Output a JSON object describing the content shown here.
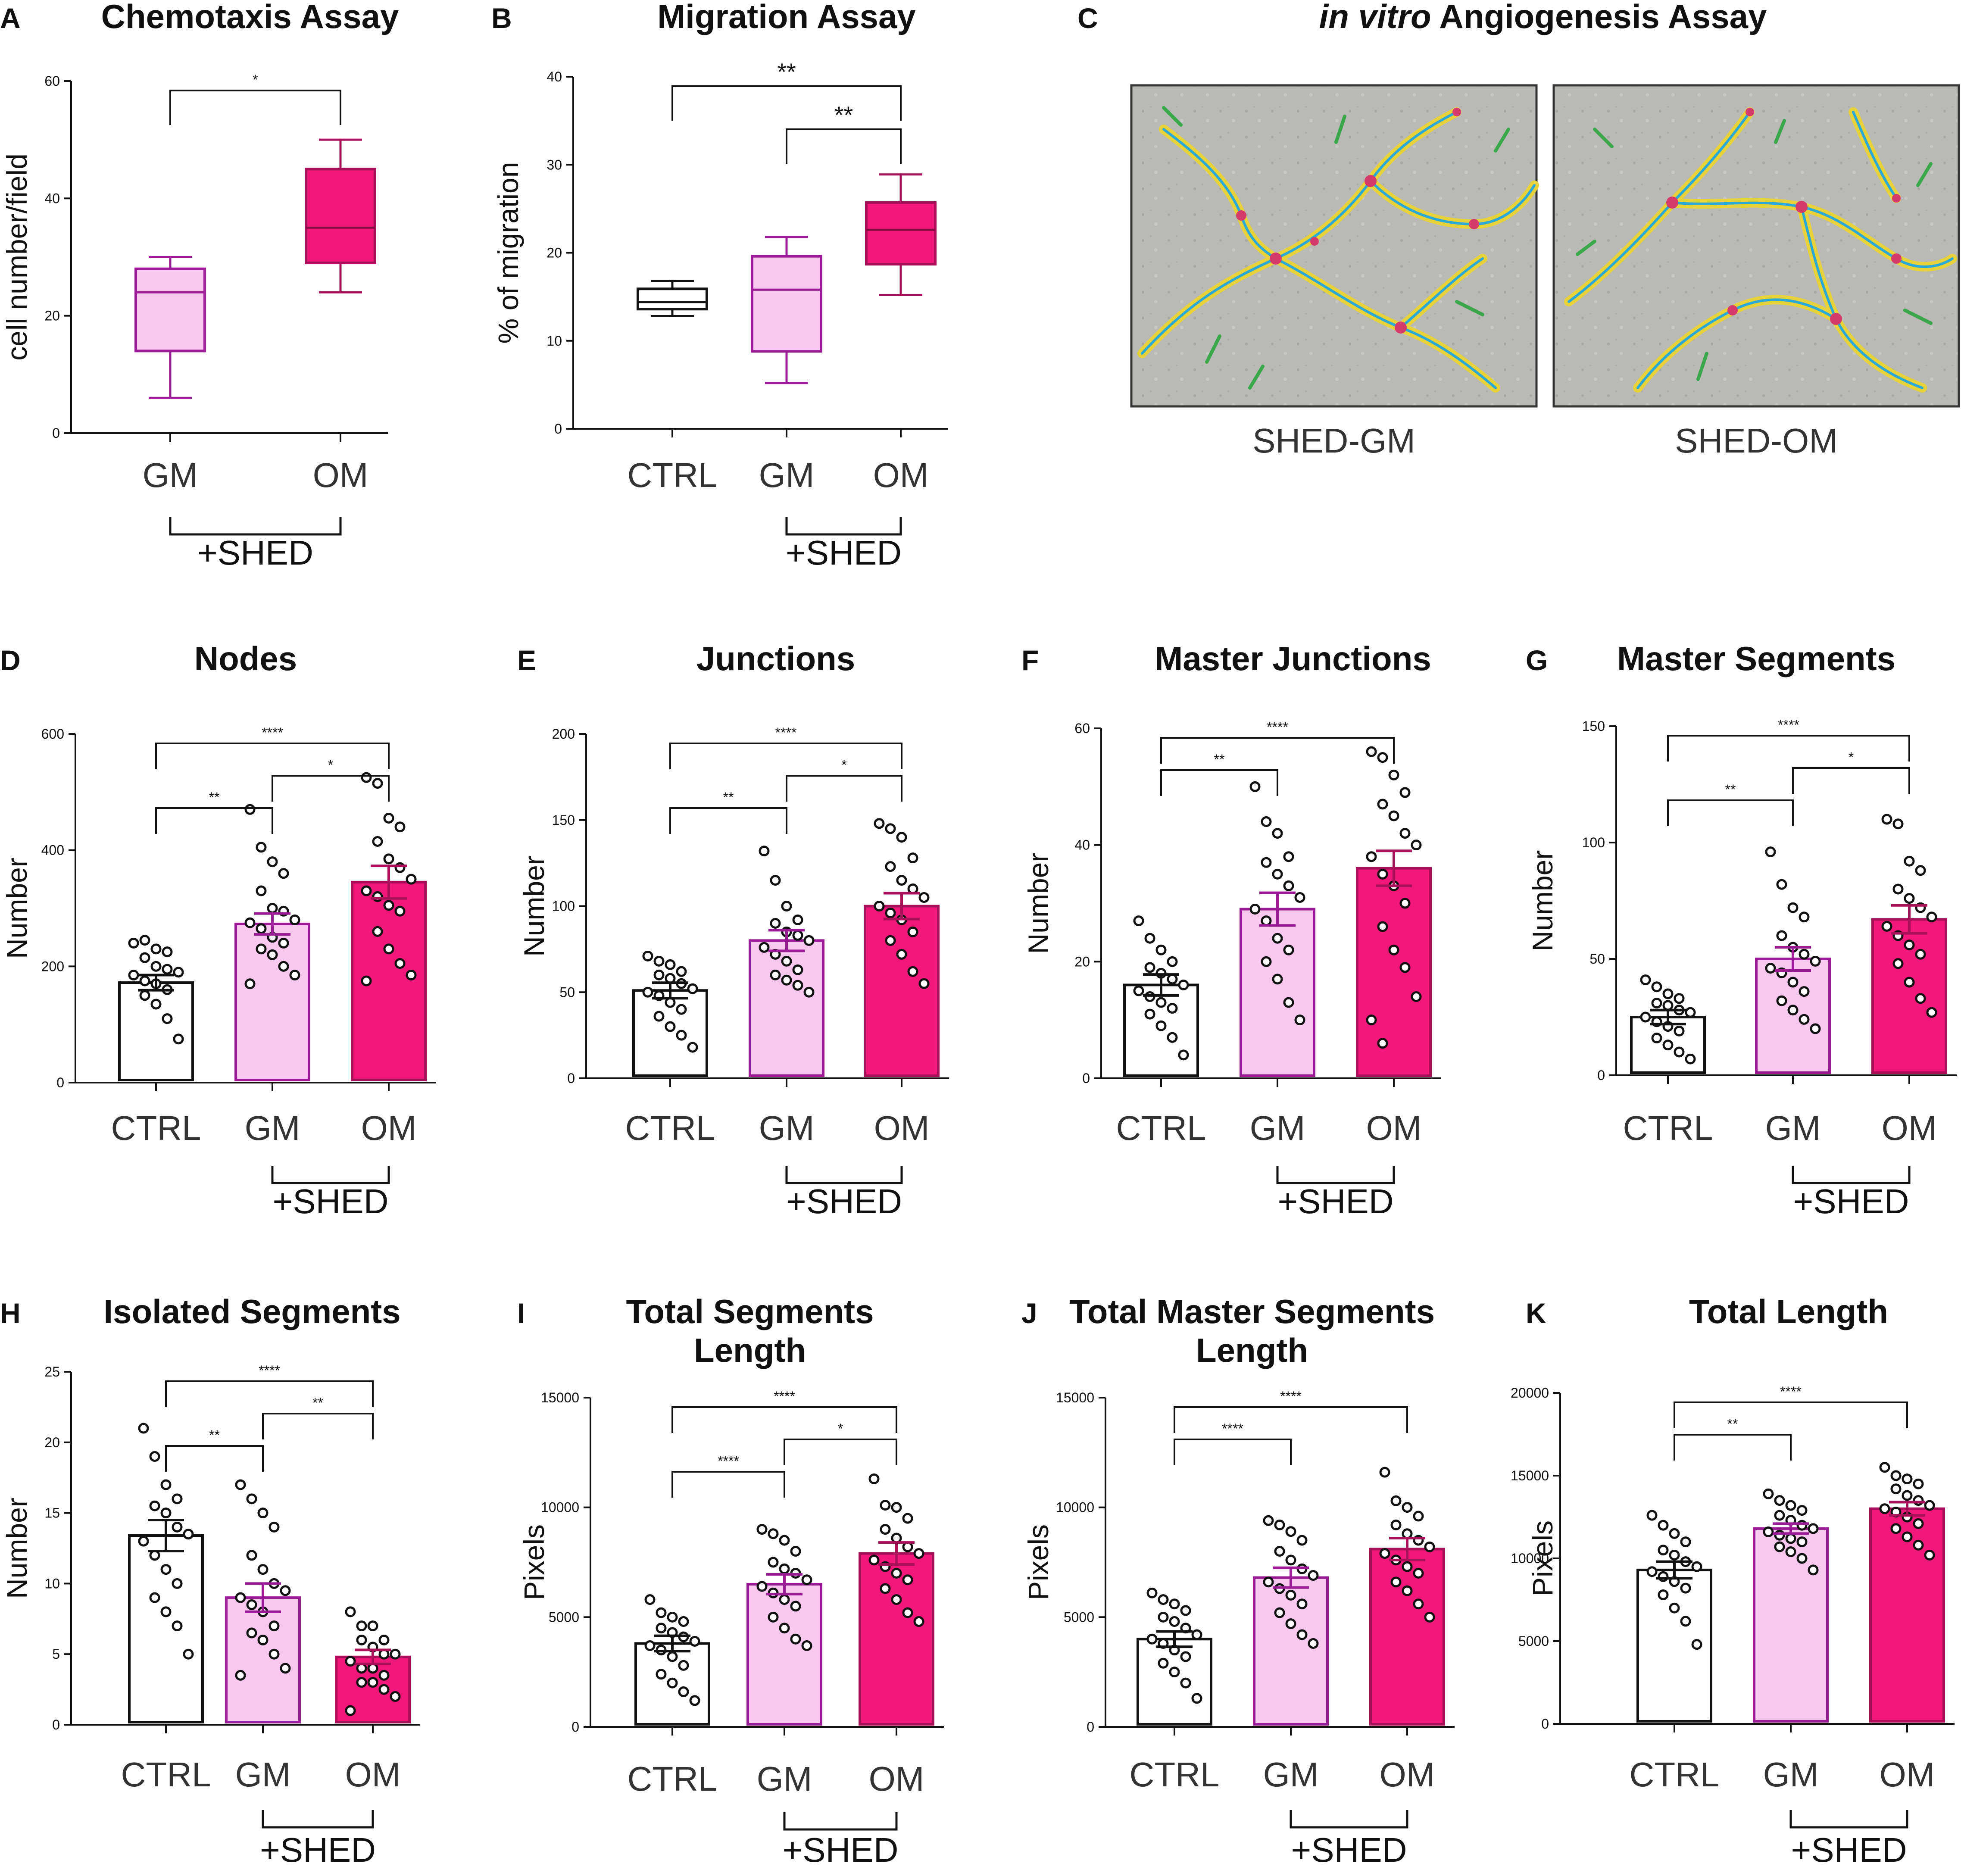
{
  "colors": {
    "ctrl_fill": "#ffffff",
    "ctrl_edge": "#111111",
    "gm_fill": "#f8c8ee",
    "gm_edge": "#9b1a96",
    "om_fill": "#f2177a",
    "om_edge": "#a8105a",
    "axis": "#111111"
  },
  "chart_data": [
    {
      "id": "A",
      "panel_label": "A",
      "type": "box",
      "title": "Chemotaxis Assay",
      "ylabel": "cell number/field",
      "ylim": [
        0,
        60
      ],
      "yticks": [
        0,
        20,
        40,
        60
      ],
      "categories": [
        "GM",
        "OM"
      ],
      "group_label": "+SHED",
      "group_members": [
        "GM",
        "OM"
      ],
      "series": [
        {
          "name": "GM",
          "style": "gm",
          "min": 6,
          "q1": 14,
          "median": 24,
          "q3": 28,
          "max": 30
        },
        {
          "name": "OM",
          "style": "om",
          "min": 24,
          "q1": 29,
          "median": 35,
          "q3": 45,
          "max": 50
        }
      ],
      "significance": [
        {
          "from": "GM",
          "to": "OM",
          "label": "*",
          "level": 0
        }
      ]
    },
    {
      "id": "B",
      "panel_label": "B",
      "type": "box",
      "title": "Migration Assay",
      "ylabel": "% of migration",
      "ylim": [
        0,
        40
      ],
      "yticks": [
        0,
        10,
        20,
        30,
        40
      ],
      "categories": [
        "CTRL",
        "GM",
        "OM"
      ],
      "group_label": "+SHED",
      "group_members": [
        "GM",
        "OM"
      ],
      "series": [
        {
          "name": "CTRL",
          "style": "ctrl",
          "min": 12.8,
          "q1": 13.6,
          "median": 14.4,
          "q3": 15.9,
          "max": 16.8
        },
        {
          "name": "GM",
          "style": "gm",
          "min": 5.2,
          "q1": 8.8,
          "median": 15.8,
          "q3": 19.6,
          "max": 21.8
        },
        {
          "name": "OM",
          "style": "om",
          "min": 15.2,
          "q1": 18.7,
          "median": 22.6,
          "q3": 25.7,
          "max": 28.9
        }
      ],
      "significance": [
        {
          "from": "CTRL",
          "to": "OM",
          "label": "**",
          "level": 1,
          "big": true
        },
        {
          "from": "GM",
          "to": "OM",
          "label": "**",
          "level": 0,
          "big": true
        }
      ]
    },
    {
      "id": "D",
      "panel_label": "D",
      "type": "bar",
      "title": "Nodes",
      "ylabel": "Number",
      "ylim": [
        0,
        600
      ],
      "yticks": [
        0,
        200,
        400,
        600
      ],
      "categories": [
        "CTRL",
        "GM",
        "OM"
      ],
      "group_label": "+SHED",
      "group_members": [
        "GM",
        "OM"
      ],
      "series": [
        {
          "name": "CTRL",
          "style": "ctrl",
          "mean": 172,
          "sem": 13,
          "points": [
            240,
            245,
            230,
            225,
            215,
            200,
            195,
            190,
            185,
            175,
            170,
            160,
            150,
            135,
            110,
            75
          ]
        },
        {
          "name": "GM",
          "style": "gm",
          "mean": 273,
          "sem": 18,
          "points": [
            470,
            405,
            380,
            360,
            330,
            300,
            295,
            280,
            275,
            265,
            250,
            240,
            230,
            220,
            200,
            185,
            170
          ]
        },
        {
          "name": "OM",
          "style": "om",
          "mean": 345,
          "sem": 28,
          "points": [
            525,
            515,
            455,
            440,
            415,
            385,
            370,
            350,
            330,
            320,
            305,
            295,
            260,
            230,
            205,
            185,
            175
          ]
        }
      ],
      "significance": [
        {
          "from": "CTRL",
          "to": "GM",
          "label": "**",
          "level": 0
        },
        {
          "from": "GM",
          "to": "OM",
          "label": "*",
          "level": 1
        },
        {
          "from": "CTRL",
          "to": "OM",
          "label": "****",
          "level": 2
        }
      ]
    },
    {
      "id": "E",
      "panel_label": "E",
      "type": "bar",
      "title": "Junctions",
      "ylabel": "Number",
      "ylim": [
        0,
        200
      ],
      "yticks": [
        0,
        50,
        100,
        150,
        200
      ],
      "categories": [
        "CTRL",
        "GM",
        "OM"
      ],
      "group_label": "+SHED",
      "group_members": [
        "GM",
        "OM"
      ],
      "series": [
        {
          "name": "CTRL",
          "style": "ctrl",
          "mean": 51,
          "sem": 4.5,
          "points": [
            71,
            68,
            66,
            62,
            60,
            58,
            55,
            52,
            50,
            48,
            44,
            40,
            36,
            30,
            25,
            18
          ]
        },
        {
          "name": "GM",
          "style": "gm",
          "mean": 80,
          "sem": 6,
          "points": [
            132,
            115,
            100,
            92,
            90,
            85,
            83,
            80,
            76,
            72,
            68,
            63,
            60,
            57,
            54,
            50
          ]
        },
        {
          "name": "OM",
          "style": "om",
          "mean": 100,
          "sem": 7.5,
          "points": [
            148,
            145,
            140,
            128,
            123,
            115,
            110,
            105,
            100,
            96,
            92,
            85,
            80,
            72,
            62,
            55
          ]
        }
      ],
      "significance": [
        {
          "from": "CTRL",
          "to": "GM",
          "label": "**",
          "level": 0
        },
        {
          "from": "GM",
          "to": "OM",
          "label": "*",
          "level": 1
        },
        {
          "from": "CTRL",
          "to": "OM",
          "label": "****",
          "level": 2
        }
      ]
    },
    {
      "id": "F",
      "panel_label": "F",
      "type": "bar",
      "title": "Master Junctions",
      "ylabel": "Number",
      "ylim": [
        0,
        60
      ],
      "yticks": [
        0,
        20,
        40,
        60
      ],
      "categories": [
        "CTRL",
        "GM",
        "OM"
      ],
      "group_label": "+SHED",
      "group_members": [
        "GM",
        "OM"
      ],
      "series": [
        {
          "name": "CTRL",
          "style": "ctrl",
          "mean": 16,
          "sem": 1.8,
          "points": [
            27,
            24,
            22,
            20,
            19,
            18,
            17,
            16,
            15,
            14,
            13,
            12,
            11,
            9,
            7,
            4
          ]
        },
        {
          "name": "GM",
          "style": "gm",
          "mean": 29,
          "sem": 2.8,
          "points": [
            50,
            44,
            42,
            38,
            37,
            35,
            33,
            31,
            29,
            27,
            24,
            22,
            20,
            17,
            13,
            10
          ]
        },
        {
          "name": "OM",
          "style": "om",
          "mean": 36,
          "sem": 3,
          "points": [
            56,
            55,
            52,
            49,
            47,
            45,
            42,
            40,
            38,
            35,
            33,
            30,
            26,
            22,
            19,
            14,
            10,
            6
          ]
        }
      ],
      "significance": [
        {
          "from": "CTRL",
          "to": "GM",
          "label": "**",
          "level": 0
        },
        {
          "from": "CTRL",
          "to": "OM",
          "label": "****",
          "level": 1
        }
      ]
    },
    {
      "id": "G",
      "panel_label": "G",
      "type": "bar",
      "title": "Master Segments",
      "ylabel": "Number",
      "ylim": [
        0,
        150
      ],
      "yticks": [
        0,
        50,
        100,
        150
      ],
      "categories": [
        "CTRL",
        "GM",
        "OM"
      ],
      "group_label": "+SHED",
      "group_members": [
        "GM",
        "OM"
      ],
      "series": [
        {
          "name": "CTRL",
          "style": "ctrl",
          "mean": 25,
          "sem": 3,
          "points": [
            41,
            38,
            35,
            33,
            31,
            30,
            28,
            27,
            25,
            23,
            21,
            19,
            16,
            13,
            10,
            7
          ]
        },
        {
          "name": "GM",
          "style": "gm",
          "mean": 50,
          "sem": 5,
          "points": [
            96,
            82,
            72,
            68,
            60,
            55,
            52,
            49,
            46,
            44,
            40,
            36,
            32,
            28,
            24,
            20
          ]
        },
        {
          "name": "OM",
          "style": "om",
          "mean": 67,
          "sem": 6,
          "points": [
            110,
            108,
            92,
            88,
            80,
            76,
            72,
            68,
            64,
            60,
            56,
            52,
            48,
            40,
            33,
            27
          ]
        }
      ],
      "significance": [
        {
          "from": "CTRL",
          "to": "GM",
          "label": "**",
          "level": 0
        },
        {
          "from": "GM",
          "to": "OM",
          "label": "*",
          "level": 1
        },
        {
          "from": "CTRL",
          "to": "OM",
          "label": "****",
          "level": 2
        }
      ]
    },
    {
      "id": "H",
      "panel_label": "H",
      "type": "bar",
      "title": "Isolated Segments",
      "ylabel": "Number",
      "ylim": [
        0,
        25
      ],
      "yticks": [
        0,
        5,
        10,
        15,
        20,
        25
      ],
      "categories": [
        "CTRL",
        "GM",
        "OM"
      ],
      "group_label": "+SHED",
      "group_members": [
        "GM",
        "OM"
      ],
      "series": [
        {
          "name": "CTRL",
          "style": "ctrl",
          "mean": 13.4,
          "sem": 1.1,
          "points": [
            21,
            19,
            17,
            16,
            15.5,
            15,
            14,
            13.5,
            13,
            12,
            11,
            10,
            9,
            8,
            7,
            5
          ]
        },
        {
          "name": "GM",
          "style": "gm",
          "mean": 9,
          "sem": 1,
          "points": [
            17,
            16,
            15,
            14,
            12,
            11,
            10,
            9.5,
            9,
            8.5,
            8,
            7,
            6.5,
            6,
            5,
            4,
            3.5
          ]
        },
        {
          "name": "OM",
          "style": "om",
          "mean": 4.8,
          "sem": 0.5,
          "points": [
            8,
            7,
            7,
            6,
            6,
            5.5,
            5,
            5,
            4.5,
            4,
            4,
            3.5,
            3,
            3,
            2.5,
            2,
            1
          ]
        }
      ],
      "significance": [
        {
          "from": "CTRL",
          "to": "GM",
          "label": "**",
          "level": 0
        },
        {
          "from": "GM",
          "to": "OM",
          "label": "**",
          "level": 1
        },
        {
          "from": "CTRL",
          "to": "OM",
          "label": "****",
          "level": 2
        }
      ]
    },
    {
      "id": "I",
      "panel_label": "I",
      "type": "bar",
      "title": "Total Segments",
      "title2": "Length",
      "ylabel": "Pixels",
      "ylim": [
        0,
        15000
      ],
      "yticks": [
        0,
        5000,
        10000,
        15000
      ],
      "categories": [
        "CTRL",
        "GM",
        "OM"
      ],
      "group_label": "+SHED",
      "group_members": [
        "GM",
        "OM"
      ],
      "series": [
        {
          "name": "CTRL",
          "style": "ctrl",
          "mean": 3800,
          "sem": 350,
          "points": [
            5800,
            5200,
            5000,
            4800,
            4500,
            4300,
            4100,
            3900,
            3700,
            3500,
            3200,
            2800,
            2400,
            2000,
            1600,
            1200
          ]
        },
        {
          "name": "GM",
          "style": "gm",
          "mean": 6500,
          "sem": 450,
          "points": [
            9000,
            8800,
            8500,
            8000,
            7500,
            7200,
            7000,
            6700,
            6400,
            6100,
            5800,
            5500,
            5000,
            4500,
            4000,
            3700
          ]
        },
        {
          "name": "OM",
          "style": "om",
          "mean": 7900,
          "sem": 500,
          "points": [
            11300,
            10100,
            10000,
            9500,
            9000,
            8600,
            8200,
            7900,
            7600,
            7300,
            7000,
            6700,
            6300,
            5800,
            5200,
            4800
          ]
        }
      ],
      "significance": [
        {
          "from": "CTRL",
          "to": "GM",
          "label": "****",
          "level": 0
        },
        {
          "from": "GM",
          "to": "OM",
          "label": "*",
          "level": 1
        },
        {
          "from": "CTRL",
          "to": "OM",
          "label": "****",
          "level": 2
        }
      ]
    },
    {
      "id": "J",
      "panel_label": "J",
      "type": "bar",
      "title": "Total Master Segments",
      "title2": "Length",
      "ylabel": "Pixels",
      "ylim": [
        0,
        15000
      ],
      "yticks": [
        0,
        5000,
        10000,
        15000
      ],
      "categories": [
        "CTRL",
        "GM",
        "OM"
      ],
      "group_label": "+SHED",
      "group_members": [
        "GM",
        "OM"
      ],
      "series": [
        {
          "name": "CTRL",
          "style": "ctrl",
          "mean": 4000,
          "sem": 350,
          "points": [
            6100,
            5800,
            5600,
            5300,
            5000,
            4800,
            4500,
            4200,
            4000,
            3800,
            3500,
            3200,
            2900,
            2500,
            2000,
            1300
          ]
        },
        {
          "name": "GM",
          "style": "gm",
          "mean": 6800,
          "sem": 450,
          "points": [
            9400,
            9200,
            8900,
            8500,
            8000,
            7600,
            7200,
            6900,
            6600,
            6300,
            6000,
            5600,
            5200,
            4700,
            4200,
            3800
          ]
        },
        {
          "name": "OM",
          "style": "om",
          "mean": 8100,
          "sem": 500,
          "points": [
            11600,
            10300,
            10000,
            9600,
            9200,
            8800,
            8500,
            8200,
            7900,
            7600,
            7300,
            7000,
            6600,
            6200,
            5600,
            5000
          ]
        }
      ],
      "significance": [
        {
          "from": "CTRL",
          "to": "GM",
          "label": "****",
          "level": 0
        },
        {
          "from": "CTRL",
          "to": "OM",
          "label": "****",
          "level": 1
        }
      ]
    },
    {
      "id": "K",
      "panel_label": "K",
      "type": "bar",
      "title": "Total Length",
      "ylabel": "Pixels",
      "ylim": [
        0,
        20000
      ],
      "yticks": [
        0,
        5000,
        10000,
        15000,
        20000
      ],
      "categories": [
        "CTRL",
        "GM",
        "OM"
      ],
      "group_label": "+SHED",
      "group_members": [
        "GM",
        "OM"
      ],
      "series": [
        {
          "name": "CTRL",
          "style": "ctrl",
          "mean": 9300,
          "sem": 500,
          "points": [
            12600,
            12000,
            11500,
            11000,
            10500,
            10200,
            9800,
            9500,
            9200,
            8900,
            8600,
            8200,
            7800,
            7000,
            6200,
            4800
          ]
        },
        {
          "name": "GM",
          "style": "gm",
          "mean": 11800,
          "sem": 300,
          "points": [
            13900,
            13500,
            13200,
            12900,
            12600,
            12300,
            12000,
            11800,
            11600,
            11400,
            11200,
            11000,
            10700,
            10400,
            10000,
            9300
          ]
        },
        {
          "name": "OM",
          "style": "om",
          "mean": 13000,
          "sem": 400,
          "points": [
            15500,
            15000,
            14800,
            14500,
            14200,
            13800,
            13500,
            13200,
            13000,
            12800,
            12500,
            12100,
            11800,
            11300,
            10800,
            10200
          ]
        }
      ],
      "significance": [
        {
          "from": "CTRL",
          "to": "GM",
          "label": "**",
          "level": 0
        },
        {
          "from": "CTRL",
          "to": "OM",
          "label": "****",
          "level": 1
        }
      ]
    }
  ],
  "panel_c": {
    "label": "C",
    "title_italic": "in vitro",
    "title_rest": " Angiogenesis Assay",
    "images": [
      {
        "caption": "SHED-GM"
      },
      {
        "caption": "SHED-OM"
      }
    ]
  }
}
